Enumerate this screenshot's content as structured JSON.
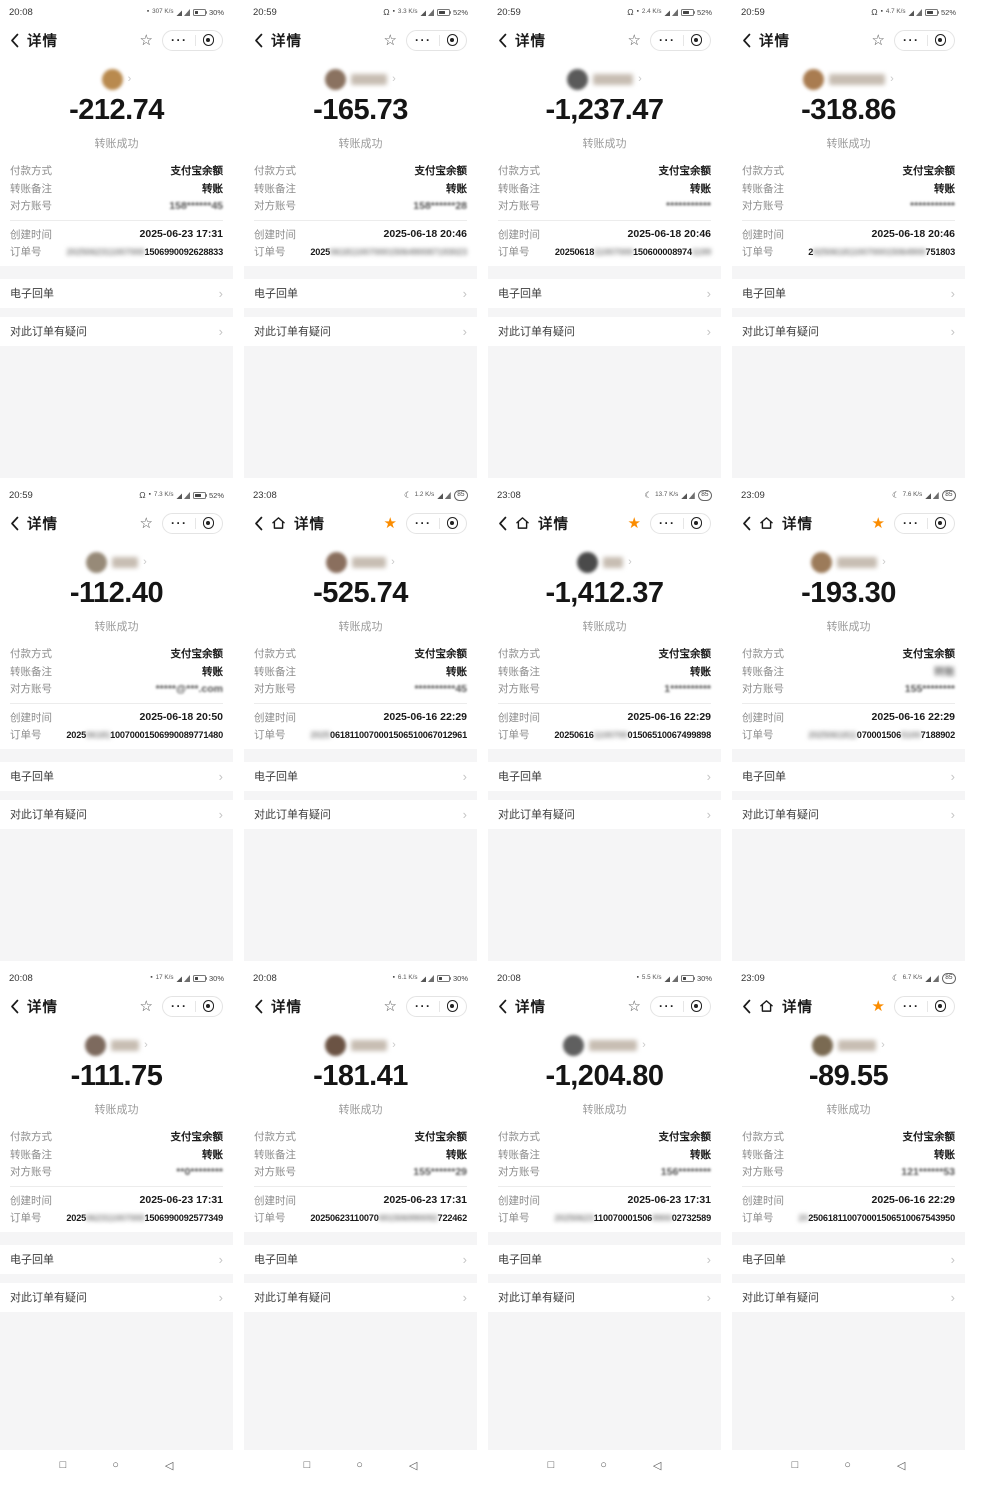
{
  "app": {
    "title": "详情",
    "result": "转账成功"
  },
  "labels": {
    "payment_method": "付款方式",
    "transfer_note": "转账备注",
    "counterparty": "对方账号",
    "created_time": "创建时间",
    "order_no": "订单号",
    "receipt": "电子回单",
    "question": "对此订单有疑问"
  },
  "icons": {
    "moon": "☾",
    "headset": "Ω",
    "sim_square": "▪",
    "chevron_right": "›",
    "star_filled": "★",
    "star_outline": "☆",
    "nav_recents": "□",
    "nav_home": "○",
    "nav_back": "◁"
  },
  "colors": {
    "star_active": "#fb8c00",
    "bg_gray": "#f5f5f6",
    "text_primary": "#1a1a1a",
    "text_label": "#8c8c8c"
  },
  "cells": [
    {
      "time": "20:08",
      "net_speed": "307 K/s",
      "battery": "30%",
      "battery_level": 30,
      "night": false,
      "headset": false,
      "nav_home": false,
      "starred": false,
      "avatar_color": "#b98a4e",
      "name_width": 0,
      "amount": "-212.74",
      "payment": "支付宝余额",
      "note": "转账",
      "note_blur": false,
      "account": "158******45",
      "created": "2025-06-23 17:31",
      "order": [
        {
          "t": "2025062311007000",
          "blur": true
        },
        {
          "t": "1506990092628833",
          "blur": false
        }
      ]
    },
    {
      "time": "20:59",
      "net_speed": "3.3 K/s",
      "battery": "52%",
      "battery_level": 52,
      "night": false,
      "headset": true,
      "nav_home": false,
      "starred": false,
      "avatar_color": "#8a7260",
      "name_width": 36,
      "amount": "-165.73",
      "payment": "支付宝余额",
      "note": "转账",
      "note_blur": false,
      "account": "158******28",
      "created": "2025-06-18 20:46",
      "order": [
        {
          "t": "2025",
          "blur": false
        },
        {
          "t": "0618110070001506490087193023",
          "blur": true
        }
      ]
    },
    {
      "time": "20:59",
      "net_speed": "2.4 K/s",
      "battery": "52%",
      "battery_level": 52,
      "night": false,
      "headset": true,
      "nav_home": false,
      "starred": false,
      "avatar_color": "#5a5a5a",
      "name_width": 40,
      "amount": "-1,237.47",
      "payment": "支付宝余额",
      "note": "转账",
      "note_blur": false,
      "account": "***********",
      "created": "2025-06-18 20:46",
      "order": [
        {
          "t": "20250618",
          "blur": false
        },
        {
          "t": "11007000",
          "blur": true
        },
        {
          "t": "150600008974",
          "blur": false
        },
        {
          "t": "1199",
          "blur": true
        }
      ]
    },
    {
      "time": "20:59",
      "net_speed": "4.7 K/s",
      "battery": "52%",
      "battery_level": 52,
      "night": false,
      "headset": true,
      "nav_home": false,
      "starred": false,
      "avatar_color": "#a97c50",
      "name_width": 56,
      "amount": "-318.86",
      "payment": "支付宝余额",
      "note": "转账",
      "note_blur": false,
      "account": "***********",
      "created": "2025-06-18 20:46",
      "order": [
        {
          "t": "2",
          "blur": false
        },
        {
          "t": "02506181100700015064900",
          "blur": true
        },
        {
          "t": "751803",
          "blur": false
        }
      ]
    },
    {
      "time": "20:59",
      "net_speed": "7.3 K/s",
      "battery": "52%",
      "battery_level": 52,
      "night": false,
      "headset": true,
      "nav_home": false,
      "starred": false,
      "avatar_color": "#978a78",
      "name_width": 26,
      "amount": "-112.40",
      "payment": "支付宝余额",
      "note": "转账",
      "note_blur": false,
      "account": "*****@***.com",
      "created": "2025-06-18 20:50",
      "order": [
        {
          "t": "2025",
          "blur": false
        },
        {
          "t": "06181",
          "blur": true
        },
        {
          "t": "10070001506990089771480",
          "blur": false
        }
      ]
    },
    {
      "time": "23:08",
      "net_speed": "1.2 K/s",
      "battery": "85",
      "battery_level": 85,
      "night": true,
      "headset": false,
      "nav_home": true,
      "starred": true,
      "avatar_color": "#8a6f5e",
      "name_width": 34,
      "amount": "-525.74",
      "payment": "支付宝余额",
      "note": "转账",
      "note_blur": false,
      "account": "**********45",
      "created": "2025-06-16 22:29",
      "order": [
        {
          "t": "2025",
          "blur": true
        },
        {
          "t": "0618110070001506510067012961",
          "blur": false
        }
      ]
    },
    {
      "time": "23:08",
      "net_speed": "13.7 K/s",
      "battery": "85",
      "battery_level": 85,
      "night": true,
      "headset": false,
      "nav_home": true,
      "starred": true,
      "avatar_color": "#4a4a4a",
      "name_width": 20,
      "amount": "-1,412.37",
      "payment": "支付宝余额",
      "note": "转账",
      "note_blur": false,
      "account": "1**********",
      "created": "2025-06-16 22:29",
      "order": [
        {
          "t": "20250616",
          "blur": false
        },
        {
          "t": "1100700",
          "blur": true
        },
        {
          "t": "01506510067499898",
          "blur": false
        }
      ]
    },
    {
      "time": "23:09",
      "net_speed": "7.6 K/s",
      "battery": "85",
      "battery_level": 85,
      "night": true,
      "headset": false,
      "nav_home": true,
      "starred": true,
      "avatar_color": "#9c7b5a",
      "name_width": 40,
      "amount": "-193.30",
      "payment": "支付宝余额",
      "note": "转账",
      "note_blur": true,
      "account": "155********",
      "created": "2025-06-16 22:29",
      "order": [
        {
          "t": "2025061811",
          "blur": true
        },
        {
          "t": "070001506",
          "blur": false
        },
        {
          "t": "5100",
          "blur": true
        },
        {
          "t": "7188902",
          "blur": false
        }
      ]
    },
    {
      "time": "20:08",
      "net_speed": "17 K/s",
      "battery": "30%",
      "battery_level": 30,
      "night": false,
      "headset": false,
      "nav_home": false,
      "starred": false,
      "avatar_color": "#7d6a5e",
      "name_width": 28,
      "amount": "-111.75",
      "payment": "支付宝余额",
      "note": "转账",
      "note_blur": false,
      "account": "**0********",
      "created": "2025-06-23 17:31",
      "order": [
        {
          "t": "2025",
          "blur": false
        },
        {
          "t": "062311007000",
          "blur": true
        },
        {
          "t": "1506990092577349",
          "blur": false
        }
      ]
    },
    {
      "time": "20:08",
      "net_speed": "6.1 K/s",
      "battery": "30%",
      "battery_level": 30,
      "night": false,
      "headset": false,
      "nav_home": false,
      "starred": false,
      "avatar_color": "#6b5344",
      "name_width": 36,
      "amount": "-181.41",
      "payment": "支付宝余额",
      "note": "转账",
      "note_blur": false,
      "account": "155******29",
      "created": "2025-06-23 17:31",
      "order": [
        {
          "t": "20250623110070",
          "blur": false
        },
        {
          "t": "001506990092",
          "blur": true
        },
        {
          "t": "722462",
          "blur": false
        }
      ]
    },
    {
      "time": "20:08",
      "net_speed": "5.5 K/s",
      "battery": "30%",
      "battery_level": 30,
      "night": false,
      "headset": false,
      "nav_home": false,
      "starred": false,
      "avatar_color": "#5f5f5f",
      "name_width": 48,
      "amount": "-1,204.80",
      "payment": "支付宝余额",
      "note": "转账",
      "note_blur": false,
      "account": "156********",
      "created": "2025-06-23 17:31",
      "order": [
        {
          "t": "20250623",
          "blur": true
        },
        {
          "t": "110070001506",
          "blur": false
        },
        {
          "t": "9900",
          "blur": true
        },
        {
          "t": "02732589",
          "blur": false
        }
      ]
    },
    {
      "time": "23:09",
      "net_speed": "6.7 K/s",
      "battery": "85",
      "battery_level": 85,
      "night": true,
      "headset": false,
      "nav_home": true,
      "starred": true,
      "avatar_color": "#7a6a52",
      "name_width": 38,
      "amount": "-89.55",
      "payment": "支付宝余额",
      "note": "转账",
      "note_blur": false,
      "account": "121******53",
      "created": "2025-06-16 22:29",
      "order": [
        {
          "t": "20",
          "blur": true
        },
        {
          "t": "250618110070001506510067543950",
          "blur": false
        }
      ]
    }
  ]
}
